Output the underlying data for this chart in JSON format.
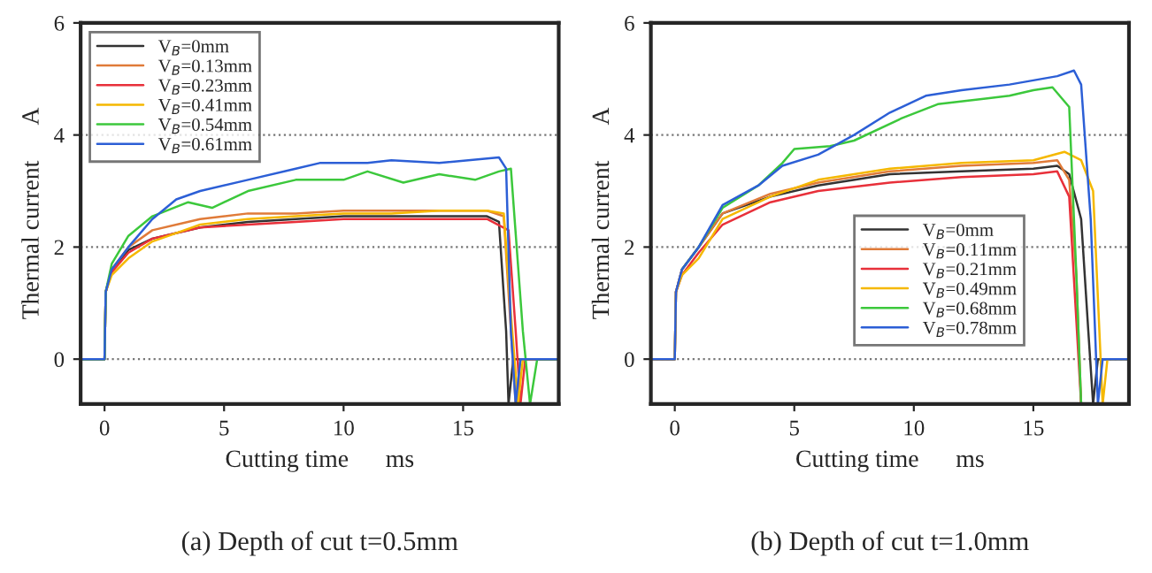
{
  "chart_data": [
    {
      "type": "line",
      "ylabel": "Thermal current      A",
      "xlabel": "Cutting time      ms",
      "annotations": [
        "(a) Depth of cut t=0.5mm"
      ],
      "xlim": [
        -1,
        19
      ],
      "ylim": [
        -0.8,
        6
      ],
      "xticks": [
        0,
        5,
        10,
        15
      ],
      "yticks": [
        0,
        2,
        4,
        6
      ],
      "grid": "y",
      "legend": "top left",
      "series": [
        {
          "name": "V$_{B}$=0mm",
          "color": "#333333",
          "x": [
            -1,
            0,
            0.05,
            0.3,
            1,
            2,
            4,
            6,
            8,
            10,
            12,
            14,
            16,
            16.5,
            16.8,
            16.9,
            17.1,
            19
          ],
          "values": [
            0,
            0,
            1.2,
            1.6,
            1.95,
            2.15,
            2.35,
            2.45,
            2.5,
            2.55,
            2.55,
            2.55,
            2.55,
            2.45,
            0.5,
            -0.8,
            0,
            0
          ]
        },
        {
          "name": "V$_{B}$=0.13mm",
          "color": "#e07b39",
          "x": [
            -1,
            0,
            0.05,
            0.3,
            1,
            2,
            4,
            6,
            8,
            10,
            12,
            14,
            16,
            16.7,
            17.0,
            17.2,
            17.4,
            19
          ],
          "values": [
            0,
            0,
            1.2,
            1.6,
            2.0,
            2.3,
            2.5,
            2.6,
            2.6,
            2.65,
            2.65,
            2.65,
            2.65,
            2.55,
            0.5,
            -0.8,
            0,
            0
          ]
        },
        {
          "name": "V$_{B}$=0.23mm",
          "color": "#e8303a",
          "x": [
            0.05,
            0.3,
            1,
            2,
            4,
            6,
            8,
            10,
            12,
            14,
            16,
            16.9,
            17.2,
            17.4,
            17.6,
            19
          ],
          "values": [
            1.2,
            1.55,
            1.9,
            2.15,
            2.35,
            2.4,
            2.45,
            2.5,
            2.5,
            2.5,
            2.5,
            2.3,
            0.5,
            -0.8,
            0,
            0
          ]
        },
        {
          "name": "V$_{B}$=0.41mm",
          "color": "#f5b800",
          "x": [
            -1,
            0,
            0.05,
            0.3,
            1,
            2,
            4,
            6,
            8,
            10,
            12,
            14,
            16,
            16.7,
            17.0,
            17.3,
            17.5,
            19
          ],
          "values": [
            0,
            0,
            1.2,
            1.5,
            1.8,
            2.1,
            2.4,
            2.5,
            2.55,
            2.6,
            2.6,
            2.65,
            2.65,
            2.6,
            0.8,
            -0.8,
            0,
            0
          ]
        },
        {
          "name": "V$_{B}$=0.54mm",
          "color": "#3cc83c",
          "x": [
            -1,
            0,
            0.05,
            0.3,
            1,
            2,
            3.5,
            4.5,
            6,
            8,
            10,
            11,
            12.5,
            14,
            15.5,
            16.5,
            17.0,
            17.5,
            17.8,
            18.1,
            19
          ],
          "values": [
            0,
            0,
            1.2,
            1.7,
            2.2,
            2.55,
            2.8,
            2.7,
            3.0,
            3.2,
            3.2,
            3.35,
            3.15,
            3.3,
            3.2,
            3.35,
            3.4,
            0.5,
            -0.8,
            0,
            0
          ]
        },
        {
          "name": "V$_{B}$=0.61mm",
          "color": "#2c5fd6",
          "x": [
            -1,
            0,
            0.05,
            0.3,
            1,
            2,
            3,
            4,
            6,
            8,
            9,
            11,
            12,
            14,
            16.5,
            16.8,
            17.0,
            17.2,
            17.4,
            19
          ],
          "values": [
            0,
            0,
            1.2,
            1.6,
            2.0,
            2.5,
            2.85,
            3.0,
            3.2,
            3.4,
            3.5,
            3.5,
            3.55,
            3.5,
            3.6,
            3.4,
            0.5,
            -0.8,
            0,
            0
          ]
        }
      ]
    },
    {
      "type": "line",
      "ylabel": "Thermal current      A",
      "xlabel": "Cutting time      ms",
      "annotations": [
        "(b) Depth of cut t=1.0mm"
      ],
      "xlim": [
        -1,
        19
      ],
      "ylim": [
        -0.8,
        6
      ],
      "xticks": [
        0,
        5,
        10,
        15
      ],
      "yticks": [
        0,
        2,
        4,
        6
      ],
      "grid": "y",
      "legend": "bottom right",
      "series": [
        {
          "name": "V$_{B}$=0mm",
          "color": "#333333",
          "x": [
            -1,
            0,
            0.05,
            0.3,
            1,
            2,
            4,
            6,
            9,
            12,
            15,
            16,
            16.5,
            17.0,
            17.3,
            17.5,
            17.7,
            19
          ],
          "values": [
            0,
            0,
            1.2,
            1.6,
            2.0,
            2.6,
            2.9,
            3.1,
            3.3,
            3.35,
            3.4,
            3.45,
            3.3,
            2.5,
            0.5,
            -0.8,
            0,
            0
          ]
        },
        {
          "name": "V$_{B}$=0.11mm",
          "color": "#e07b39",
          "x": [
            -1,
            0,
            0.05,
            0.3,
            1,
            2,
            4,
            6,
            9,
            12,
            15,
            16,
            16.5,
            16.8,
            17.0
          ],
          "values": [
            0,
            0,
            1.2,
            1.6,
            2.0,
            2.6,
            2.95,
            3.15,
            3.35,
            3.45,
            3.5,
            3.55,
            3.2,
            1.5,
            -0.8
          ]
        },
        {
          "name": "V$_{B}$=0.21mm",
          "color": "#e8303a",
          "x": [
            0.05,
            0.3,
            1,
            2,
            4,
            6,
            9,
            12,
            15,
            16,
            16.5,
            17.0
          ],
          "values": [
            1.2,
            1.5,
            1.9,
            2.4,
            2.8,
            3.0,
            3.15,
            3.25,
            3.3,
            3.35,
            2.9,
            -0.8
          ]
        },
        {
          "name": "V$_{B}$=0.49mm",
          "color": "#f5b800",
          "x": [
            -1,
            0,
            0.05,
            0.3,
            1,
            2,
            4,
            6,
            9,
            12,
            15,
            16.3,
            17,
            17.5,
            17.9,
            18.1,
            19
          ],
          "values": [
            0,
            0,
            1.2,
            1.5,
            1.8,
            2.5,
            2.9,
            3.2,
            3.4,
            3.5,
            3.55,
            3.7,
            3.55,
            3.0,
            -0.8,
            0,
            0
          ]
        },
        {
          "name": "V$_{B}$=0.68mm",
          "color": "#3cc83c",
          "x": [
            0.3,
            1,
            2,
            3.5,
            4.5,
            5,
            6.5,
            7.5,
            9.5,
            11,
            13,
            14,
            15,
            15.8,
            16.5,
            16.8,
            17.0
          ],
          "values": [
            1.6,
            2.0,
            2.7,
            3.1,
            3.5,
            3.75,
            3.8,
            3.9,
            4.3,
            4.55,
            4.65,
            4.7,
            4.8,
            4.85,
            4.5,
            1.5,
            -0.8
          ]
        },
        {
          "name": "V$_{B}$=0.78mm",
          "color": "#2c5fd6",
          "x": [
            -1,
            0,
            0.05,
            0.3,
            1,
            2,
            3.5,
            4.5,
            6,
            7.5,
            9,
            10.5,
            12,
            14,
            16,
            16.7,
            17.0,
            17.4,
            17.7,
            17.9,
            19
          ],
          "values": [
            0,
            0,
            1.2,
            1.6,
            2.0,
            2.75,
            3.1,
            3.45,
            3.65,
            4.0,
            4.4,
            4.7,
            4.8,
            4.9,
            5.05,
            5.15,
            4.9,
            2.5,
            -0.8,
            0,
            0
          ]
        }
      ]
    }
  ]
}
